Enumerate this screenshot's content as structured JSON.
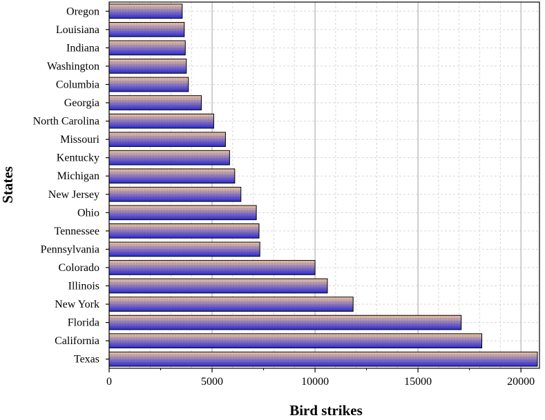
{
  "chart_data": {
    "type": "bar",
    "orientation": "horizontal",
    "title": "",
    "xlabel": "Bird strikes",
    "ylabel": "States",
    "xlim": [
      0,
      20900
    ],
    "x_ticks": [
      0,
      5000,
      10000,
      15000,
      20000
    ],
    "x_tick_labels": [
      "0",
      "5000",
      "10000",
      "15000",
      "20000"
    ],
    "grid": {
      "major_vertical": true,
      "minor_dashed": true
    },
    "legend": "none",
    "colors": {
      "bar_top": "#f0c8a0",
      "bar_bottom": "#2a2ad8",
      "grid_major": "#a0a0a0",
      "grid_minor": "#d6d6d6"
    },
    "categories": [
      "Oregon",
      "Louisiana",
      "Indiana",
      "Washington",
      "Columbia",
      "Georgia",
      "North Carolina",
      "Missouri",
      "Kentucky",
      "Michigan",
      "New Jersey",
      "Ohio",
      "Tennessee",
      "Pennsylvania",
      "Colorado",
      "Illinois",
      "New York",
      "Florida",
      "California",
      "Texas"
    ],
    "values": [
      3550,
      3650,
      3700,
      3750,
      3850,
      4480,
      5080,
      5650,
      5850,
      6100,
      6400,
      7150,
      7280,
      7320,
      10000,
      10600,
      11850,
      17100,
      18100,
      20800
    ]
  }
}
